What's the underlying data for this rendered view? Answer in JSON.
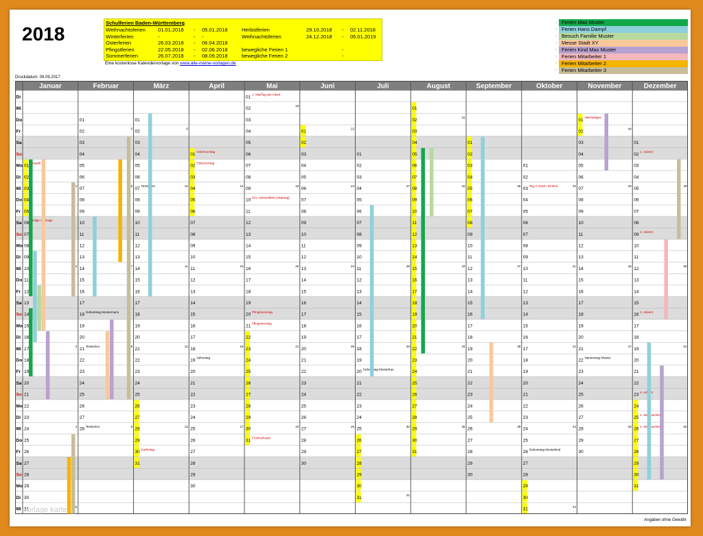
{
  "year": "2018",
  "holiday_box": {
    "title": "Schulferien Baden-Württemberg",
    "left": [
      {
        "name": "Weihnachtsferien",
        "from": "01.01.2018",
        "sep": "-",
        "to": "05.01.2018"
      },
      {
        "name": "Winterferien",
        "from": "-",
        "sep": "-",
        "to": "-"
      },
      {
        "name": "Osterferien",
        "from": "26.03.2018",
        "sep": "-",
        "to": "06.04.2018"
      },
      {
        "name": "Pfingstferien",
        "from": "22.05.2018",
        "sep": "-",
        "to": "02.06.2018"
      },
      {
        "name": "Sommerferien",
        "from": "26.07.2018",
        "sep": "-",
        "to": "08.09.2018"
      }
    ],
    "right": [
      {
        "name": "Herbstferien",
        "from": "29.10.2018",
        "sep": "-",
        "to": "02.11.2018"
      },
      {
        "name": "Weihnachtsferien",
        "from": "24.12.2018",
        "sep": "-",
        "to": "05.01.2019"
      },
      {
        "name": "",
        "from": "",
        "sep": "",
        "to": ""
      },
      {
        "name": "bewegliche Ferien 1",
        "from": "",
        "sep": "-",
        "to": ""
      },
      {
        "name": "bewegliche Ferien 2",
        "from": "",
        "sep": "-",
        "to": ""
      }
    ]
  },
  "source_text": "Eine kostenlose Kalendervorlage von",
  "source_link": "www.alle-meine-vorlagen.de",
  "legend": [
    {
      "label": "Ferien Max Muster",
      "color": "#12a84a"
    },
    {
      "label": "Ferien Hans Dampf",
      "color": "#8ed0dc"
    },
    {
      "label": "Besuch Familie Muster",
      "color": "#b7d9a0"
    },
    {
      "label": "Messe Stadt XY",
      "color": "#f8c89c"
    },
    {
      "label": "Ferien Kind Max Muster",
      "color": "#b8a2cf"
    },
    {
      "label": "Ferien Mitarbeiter 1",
      "color": "#f2b8bc"
    },
    {
      "label": "Ferien Mitarbeiter 2",
      "color": "#f5b400"
    },
    {
      "label": "Ferien Mitarbeiter 3",
      "color": "#c8bd9a"
    }
  ],
  "print_date": "Druckdatum:  09.09.2017",
  "footer": "Angaben ohne Gewähr",
  "watermark": "vorlage karte",
  "months": [
    "Januar",
    "Februar",
    "März",
    "April",
    "Mai",
    "Juni",
    "Juli",
    "August",
    "September",
    "Oktober",
    "November",
    "Dezember"
  ],
  "weekday_labels": [
    "Di",
    "Mi",
    "Do",
    "Fr",
    "Sa",
    "So",
    "Mo",
    "Di",
    "Mi",
    "Do",
    "Fr",
    "Sa",
    "So",
    "Mo",
    "Di",
    "Mi",
    "Do",
    "Fr",
    "Sa",
    "So",
    "Mo",
    "Di",
    "Mi",
    "Do",
    "Fr",
    "Sa",
    "So",
    "Mo",
    "Di",
    "Mi",
    "Do",
    "Fr",
    "Sa",
    "So",
    "Mo",
    "Di",
    "Mi"
  ],
  "month_start_row": [
    6,
    2,
    2,
    5,
    0,
    3,
    5,
    1,
    4,
    6,
    2,
    4
  ],
  "month_days": [
    31,
    28,
    31,
    30,
    31,
    30,
    31,
    31,
    30,
    31,
    30,
    31
  ],
  "yellow_days": {
    "Januar": [
      1,
      2,
      3,
      4,
      5
    ],
    "Februar": [],
    "März": [
      26,
      27,
      28,
      29,
      30,
      31
    ],
    "April": [
      1,
      2,
      3,
      4,
      5,
      6
    ],
    "Mai": [
      22,
      23,
      24,
      25,
      26,
      27,
      28,
      29,
      30,
      31
    ],
    "Juni": [
      1,
      2
    ],
    "Juli": [
      26,
      27,
      28,
      29,
      30,
      31
    ],
    "August": [
      1,
      2,
      3,
      4,
      5,
      6,
      7,
      8,
      9,
      10,
      11,
      12,
      13,
      14,
      15,
      16,
      17,
      18,
      19,
      20,
      21,
      22,
      23,
      24,
      25,
      26,
      27,
      28,
      29,
      30,
      31
    ],
    "September": [
      1,
      2,
      3,
      4,
      5,
      6,
      7,
      8
    ],
    "Oktober": [
      29,
      30,
      31
    ],
    "November": [
      1,
      2
    ],
    "Dezember": [
      24,
      25,
      26,
      27,
      28,
      29,
      30,
      31
    ]
  },
  "annotations": [
    {
      "month": "Januar",
      "day": 1,
      "text": "Neujahr",
      "color": "#d00000"
    },
    {
      "month": "Januar",
      "day": 6,
      "text": "Heilige 3 Könige",
      "color": "#d00000"
    },
    {
      "month": "Februar",
      "day": 18,
      "text": "Geburtstag Mustermann",
      "color": "#000000"
    },
    {
      "month": "Februar",
      "day": 21,
      "text": "Testserie1",
      "color": "#000000"
    },
    {
      "month": "Februar",
      "day": 28,
      "text": "Testserie1",
      "color": "#000000"
    },
    {
      "month": "März",
      "day": 7,
      "text": "Testserie1",
      "color": "#000000"
    },
    {
      "month": "März",
      "day": 30,
      "text": "Karfreitag",
      "color": "#d00000"
    },
    {
      "month": "April",
      "day": 1,
      "text": "Ostersonntag",
      "color": "#d00000"
    },
    {
      "month": "April",
      "day": 2,
      "text": "Ostermontag",
      "color": "#d00000"
    },
    {
      "month": "April",
      "day": 19,
      "text": "Jahrestag",
      "color": "#000000"
    },
    {
      "month": "Mai",
      "day": 1,
      "text": "1. Mai/Tag der Arbeit",
      "color": "#d00000"
    },
    {
      "month": "Mai",
      "day": 10,
      "text": "Chr. Himmelfahrt (Vatertag)",
      "color": "#d00000"
    },
    {
      "month": "Mai",
      "day": 20,
      "text": "Pfingstsonntag",
      "color": "#d00000"
    },
    {
      "month": "Mai",
      "day": 21,
      "text": "Pfingstmontag",
      "color": "#d00000"
    },
    {
      "month": "Mai",
      "day": 31,
      "text": "Fronleichnam",
      "color": "#d00000"
    },
    {
      "month": "Juli",
      "day": 20,
      "text": "Geburtstag Musterfrau",
      "color": "#000000"
    },
    {
      "month": "Oktober",
      "day": 3,
      "text": "Tag d. Dtsch. Einheit",
      "color": "#d00000"
    },
    {
      "month": "Oktober",
      "day": 26,
      "text": "Geburtstag Musterkind",
      "color": "#000000"
    },
    {
      "month": "November",
      "day": 1,
      "text": "Allerheiligen",
      "color": "#d00000"
    },
    {
      "month": "November",
      "day": 22,
      "text": "Namenstag Muster",
      "color": "#000000"
    },
    {
      "month": "Dezember",
      "day": 2,
      "text": "1. Advent",
      "color": "#d00000"
    },
    {
      "month": "Dezember",
      "day": 9,
      "text": "2. Advent",
      "color": "#d00000"
    },
    {
      "month": "Dezember",
      "day": 16,
      "text": "3. Advent",
      "color": "#d00000"
    },
    {
      "month": "Dezember",
      "day": 23,
      "text": "4. Advent",
      "color": "#d00000"
    },
    {
      "month": "Dezember",
      "day": 25,
      "text": "1. Weihnachtstag",
      "color": "#d00000"
    },
    {
      "month": "Dezember",
      "day": 26,
      "text": "2. Weihnachtstag",
      "color": "#d00000"
    }
  ],
  "week_numbers": [
    {
      "month": "Januar",
      "day": 3,
      "text": "1"
    },
    {
      "month": "Januar",
      "day": 10,
      "text": "2"
    },
    {
      "month": "Januar",
      "day": 17,
      "text": "3"
    },
    {
      "month": "Januar",
      "day": 24,
      "text": "4"
    },
    {
      "month": "Januar",
      "day": 31,
      "text": "5"
    },
    {
      "month": "Februar",
      "day": 2,
      "text": "5"
    },
    {
      "month": "Februar",
      "day": 7,
      "text": "6"
    },
    {
      "month": "Februar",
      "day": 14,
      "text": "7"
    },
    {
      "month": "Februar",
      "day": 21,
      "text": "8"
    },
    {
      "month": "Februar",
      "day": 28,
      "text": "9"
    },
    {
      "month": "März",
      "day": 2,
      "text": "9"
    },
    {
      "month": "März",
      "day": 7,
      "text": "10"
    },
    {
      "month": "März",
      "day": 14,
      "text": "11"
    },
    {
      "month": "März",
      "day": 21,
      "text": "12"
    },
    {
      "month": "März",
      "day": 28,
      "text": "13"
    },
    {
      "month": "April",
      "day": 4,
      "text": "14"
    },
    {
      "month": "April",
      "day": 11,
      "text": "15"
    },
    {
      "month": "April",
      "day": 18,
      "text": "16"
    },
    {
      "month": "April",
      "day": 25,
      "text": "17"
    },
    {
      "month": "Mai",
      "day": 2,
      "text": "18"
    },
    {
      "month": "Mai",
      "day": 9,
      "text": "19"
    },
    {
      "month": "Mai",
      "day": 16,
      "text": "20"
    },
    {
      "month": "Mai",
      "day": 23,
      "text": "21"
    },
    {
      "month": "Mai",
      "day": 30,
      "text": "22"
    },
    {
      "month": "Juni",
      "day": 1,
      "text": "22"
    },
    {
      "month": "Juni",
      "day": 6,
      "text": "23"
    },
    {
      "month": "Juni",
      "day": 13,
      "text": "24"
    },
    {
      "month": "Juni",
      "day": 20,
      "text": "25"
    },
    {
      "month": "Juni",
      "day": 27,
      "text": "26"
    },
    {
      "month": "Juli",
      "day": 4,
      "text": "27"
    },
    {
      "month": "Juli",
      "day": 11,
      "text": "28"
    },
    {
      "month": "Juli",
      "day": 18,
      "text": "29"
    },
    {
      "month": "Juli",
      "day": 25,
      "text": "30"
    },
    {
      "month": "Juli",
      "day": 31,
      "text": "31"
    },
    {
      "month": "August",
      "day": 2,
      "text": "31"
    },
    {
      "month": "August",
      "day": 8,
      "text": "32"
    },
    {
      "month": "August",
      "day": 15,
      "text": "33"
    },
    {
      "month": "August",
      "day": 22,
      "text": "34"
    },
    {
      "month": "August",
      "day": 29,
      "text": "35"
    },
    {
      "month": "September",
      "day": 5,
      "text": "36"
    },
    {
      "month": "September",
      "day": 12,
      "text": "37"
    },
    {
      "month": "September",
      "day": 19,
      "text": "38"
    },
    {
      "month": "September",
      "day": 26,
      "text": "39"
    },
    {
      "month": "Oktober",
      "day": 3,
      "text": "40"
    },
    {
      "month": "Oktober",
      "day": 10,
      "text": "41"
    },
    {
      "month": "Oktober",
      "day": 17,
      "text": "42"
    },
    {
      "month": "Oktober",
      "day": 24,
      "text": "43"
    },
    {
      "month": "Oktober",
      "day": 31,
      "text": "44"
    },
    {
      "month": "November",
      "day": 2,
      "text": "44"
    },
    {
      "month": "November",
      "day": 7,
      "text": "45"
    },
    {
      "month": "November",
      "day": 14,
      "text": "46"
    },
    {
      "month": "November",
      "day": 21,
      "text": "47"
    },
    {
      "month": "November",
      "day": 28,
      "text": "48"
    },
    {
      "month": "Dezember",
      "day": 5,
      "text": "49"
    },
    {
      "month": "Dezember",
      "day": 12,
      "text": "50"
    },
    {
      "month": "Dezember",
      "day": 19,
      "text": "51"
    },
    {
      "month": "Dezember",
      "day": 26,
      "text": "52"
    }
  ],
  "bars": [
    {
      "month": "Januar",
      "from": 1,
      "to": 12,
      "lane": 0,
      "legend": 0
    },
    {
      "month": "Januar",
      "from": 9,
      "to": 16,
      "lane": 1,
      "legend": 1
    },
    {
      "month": "Januar",
      "from": 12,
      "to": 15,
      "lane": 2,
      "legend": 2
    },
    {
      "month": "Januar",
      "from": 1,
      "to": 15,
      "lane": 3,
      "legend": 3
    },
    {
      "month": "Januar",
      "from": 14,
      "to": 19,
      "lane": 0,
      "legend": 0
    },
    {
      "month": "Januar",
      "from": 16,
      "to": 21,
      "lane": 4,
      "legend": 4
    },
    {
      "month": "Januar",
      "from": 27,
      "to": 31,
      "lane": 9,
      "legend": 6
    },
    {
      "month": "Januar",
      "from": 3,
      "to": 12,
      "lane": 10,
      "legend": 7
    },
    {
      "month": "Januar",
      "from": 25,
      "to": 31,
      "lane": 10,
      "legend": 7
    },
    {
      "month": "Februar",
      "from": 10,
      "to": 16,
      "lane": 2,
      "legend": 1
    },
    {
      "month": "Februar",
      "from": 5,
      "to": 13,
      "lane": 8,
      "legend": 6
    },
    {
      "month": "Februar",
      "from": 20,
      "to": 25,
      "lane": 5,
      "legend": 3
    },
    {
      "month": "Februar",
      "from": 19,
      "to": 25,
      "lane": 6,
      "legend": 4
    },
    {
      "month": "Februar",
      "from": 3,
      "to": 25,
      "lane": 10,
      "legend": 7
    },
    {
      "month": "März",
      "from": 1,
      "to": 16,
      "lane": 2,
      "legend": 1
    },
    {
      "month": "Juli",
      "from": 6,
      "to": 20,
      "lane": 2,
      "legend": 1
    },
    {
      "month": "August",
      "from": 5,
      "to": 22,
      "lane": 1,
      "legend": 0
    },
    {
      "month": "August",
      "from": 5,
      "to": 10,
      "lane": 3,
      "legend": 2
    },
    {
      "month": "September",
      "from": 1,
      "to": 16,
      "lane": 2,
      "legend": 1
    },
    {
      "month": "September",
      "from": 19,
      "to": 25,
      "lane": 4,
      "legend": 3
    },
    {
      "month": "November",
      "from": 1,
      "to": 5,
      "lane": 5,
      "legend": 4
    },
    {
      "month": "Dezember",
      "from": 10,
      "to": 16,
      "lane": 6,
      "legend": 5
    },
    {
      "month": "Dezember",
      "from": 19,
      "to": 30,
      "lane": 2,
      "legend": 1
    },
    {
      "month": "Dezember",
      "from": 21,
      "to": 30,
      "lane": 5,
      "legend": 4
    },
    {
      "month": "Dezember",
      "from": 3,
      "to": 9,
      "lane": 9,
      "legend": 7
    }
  ]
}
